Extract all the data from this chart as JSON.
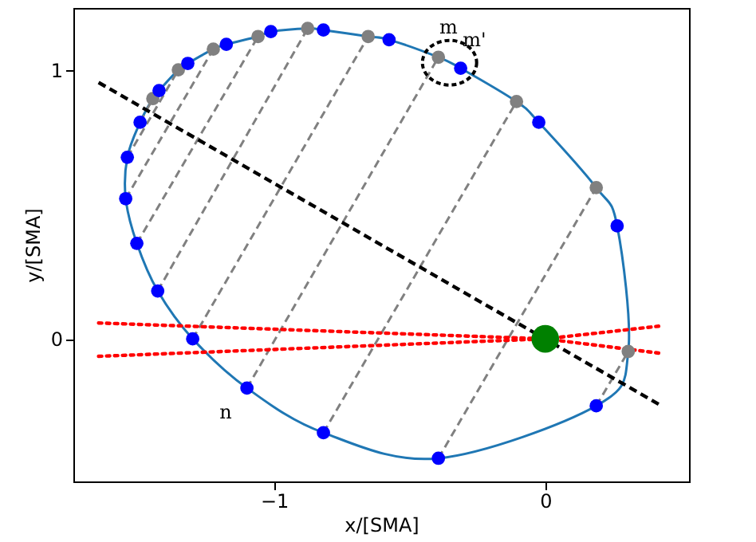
{
  "chart_data": {
    "type": "scatter",
    "xlabel": "x/[SMA]",
    "ylabel": "y/[SMA]",
    "xlim": [
      -1.74,
      0.53
    ],
    "ylim": [
      -0.53,
      1.23
    ],
    "xticks": [
      {
        "value": -1,
        "label": "−1"
      },
      0
    ],
    "yticks": [
      0,
      1
    ],
    "grid": false,
    "annotations": [
      {
        "text": "m",
        "x": -0.394,
        "y": 1.047
      },
      {
        "text": "m'",
        "x": -0.312,
        "y": 1.006
      },
      {
        "text": "n",
        "x": -1.1,
        "y": -0.183
      }
    ],
    "series": [
      {
        "type": "line",
        "color": "#808080",
        "marker": "none",
        "line_style": "dashed",
        "x": [
          0.188,
          0.306
        ],
        "values": [
          -0.249,
          -0.047
        ]
      },
      {
        "type": "line",
        "color": "#808080",
        "marker": "none",
        "line_style": "dashed",
        "x": [
          -0.394,
          0.188
        ],
        "values": [
          -0.444,
          0.562
        ]
      },
      {
        "type": "line",
        "color": "#808080",
        "marker": "none",
        "line_style": "dashed",
        "x": [
          -0.818,
          -0.106
        ],
        "values": [
          -0.349,
          0.882
        ]
      },
      {
        "type": "line",
        "color": "#808080",
        "marker": "none",
        "line_style": "dashed",
        "x": [
          -1.1,
          -0.394
        ],
        "values": [
          -0.183,
          1.047
        ]
      },
      {
        "type": "line",
        "color": "#808080",
        "marker": "none",
        "line_style": "dashed",
        "x": [
          -1.3,
          -0.653
        ],
        "values": [
          0.0,
          1.124
        ]
      },
      {
        "type": "line",
        "color": "#808080",
        "marker": "none",
        "line_style": "dashed",
        "x": [
          -1.429,
          -0.876
        ],
        "values": [
          0.178,
          1.154
        ]
      },
      {
        "type": "line",
        "color": "#808080",
        "marker": "none",
        "line_style": "dashed",
        "x": [
          -1.506,
          -1.059
        ],
        "values": [
          0.355,
          1.124
        ]
      },
      {
        "type": "line",
        "color": "#808080",
        "marker": "none",
        "line_style": "dashed",
        "x": [
          -1.547,
          -1.224
        ],
        "values": [
          0.521,
          1.077
        ]
      },
      {
        "type": "line",
        "color": "#808080",
        "marker": "none",
        "line_style": "dashed",
        "x": [
          -1.541,
          -1.353
        ],
        "values": [
          0.675,
          1.0
        ]
      },
      {
        "type": "line",
        "color": "#808080",
        "marker": "none",
        "line_style": "dashed",
        "x": [
          -1.494,
          -1.447
        ],
        "values": [
          0.805,
          0.893
        ]
      },
      {
        "type": "line",
        "color": "#ff0000",
        "marker": "none",
        "line_style": "dotted",
        "x": [
          -1.647,
          0,
          0.418
        ],
        "values": [
          0.059,
          0,
          -0.053
        ]
      },
      {
        "type": "line",
        "color": "#ff0000",
        "marker": "none",
        "line_style": "dotted",
        "x": [
          -1.647,
          0,
          0.418
        ],
        "values": [
          -0.065,
          0,
          0.047
        ]
      },
      {
        "type": "line",
        "color": "#000000",
        "marker": "none",
        "line_style": "dashed",
        "x": [
          -1.647,
          0.418
        ],
        "values": [
          0.953,
          -0.243
        ]
      },
      {
        "color": "#808080",
        "marker": "circle",
        "x": [
          0.306,
          0.188,
          -0.106,
          -0.394,
          -0.653,
          -0.876,
          -1.059,
          -1.224,
          -1.353,
          -1.447
        ],
        "values": [
          -0.047,
          0.562,
          0.882,
          1.047,
          1.124,
          1.154,
          1.124,
          1.077,
          1.0,
          0.893
        ]
      },
      {
        "color": "#0000ff",
        "marker": "circle",
        "x": [
          -1.012,
          -0.818,
          -1.176,
          -1.318,
          -1.424,
          -1.494,
          -1.541,
          -1.547,
          -1.506,
          -1.429,
          -1.3,
          -1.1,
          -0.818,
          -0.394,
          0.188,
          0.265,
          -0.024,
          -0.312,
          -0.576
        ],
        "values": [
          1.142,
          1.148,
          1.095,
          1.024,
          0.923,
          0.805,
          0.675,
          0.521,
          0.355,
          0.178,
          0.0,
          -0.183,
          -0.349,
          -0.444,
          -0.249,
          0.42,
          0.805,
          1.006,
          1.112
        ]
      },
      {
        "type": "bubble",
        "color": "#008000",
        "marker": "circle",
        "x": [
          0
        ],
        "values": [
          0
        ],
        "sizes": [
          1
        ]
      }
    ]
  }
}
